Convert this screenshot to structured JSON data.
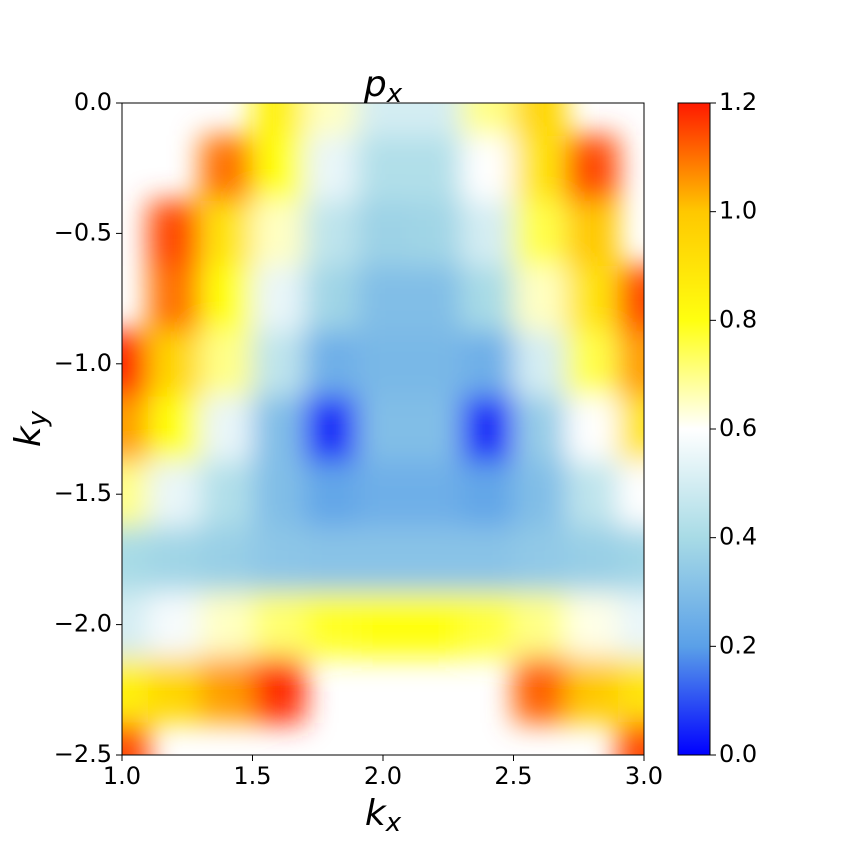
{
  "chart_data": {
    "type": "heatmap",
    "title": {
      "text": "p",
      "subscript": "x"
    },
    "xlabel": {
      "text": "k",
      "subscript": "x"
    },
    "ylabel": {
      "text": "k",
      "subscript": "y"
    },
    "x": [
      1.0,
      1.2,
      1.4,
      1.6,
      1.8,
      2.0,
      2.2,
      2.4,
      2.6,
      2.8,
      3.0
    ],
    "y": [
      0,
      -0.25,
      -0.5,
      -0.75,
      -1.0,
      -1.25,
      -1.5,
      -1.75,
      -2.0,
      -2.25,
      -2.5
    ],
    "z": [
      [
        null,
        null,
        null,
        0.85,
        0.65,
        0.5,
        0.5,
        0.7,
        0.95,
        null,
        null
      ],
      [
        null,
        null,
        1.1,
        0.8,
        0.55,
        0.42,
        0.42,
        0.6,
        0.9,
        1.15,
        null
      ],
      [
        null,
        1.15,
        0.9,
        0.65,
        0.45,
        0.37,
        0.38,
        0.5,
        0.75,
        1.0,
        null
      ],
      [
        null,
        1.1,
        0.8,
        0.55,
        0.38,
        0.3,
        0.3,
        0.4,
        0.65,
        0.9,
        1.15
      ],
      [
        1.2,
        0.95,
        0.7,
        0.45,
        0.25,
        0.28,
        0.28,
        0.25,
        0.5,
        0.75,
        1.05
      ],
      [
        1.05,
        0.8,
        0.55,
        0.3,
        0.05,
        0.3,
        0.3,
        0.05,
        0.35,
        0.6,
        0.9
      ],
      [
        0.7,
        0.55,
        0.42,
        0.3,
        0.22,
        0.25,
        0.25,
        0.22,
        0.3,
        0.45,
        0.6
      ],
      [
        0.4,
        0.38,
        0.36,
        0.33,
        0.32,
        0.32,
        0.32,
        0.32,
        0.34,
        0.36,
        0.38
      ],
      [
        0.5,
        0.58,
        0.65,
        0.72,
        0.78,
        0.8,
        0.8,
        0.76,
        0.7,
        0.62,
        0.55
      ],
      [
        0.85,
        0.95,
        1.05,
        1.18,
        null,
        null,
        null,
        null,
        1.12,
        1.0,
        0.9
      ],
      [
        1.15,
        null,
        null,
        null,
        null,
        null,
        null,
        null,
        null,
        null,
        1.15
      ]
    ],
    "xlim": [
      1.0,
      3.0
    ],
    "ylim": [
      -2.5,
      0
    ],
    "xticks": [
      {
        "value": 1.0,
        "label": "1.0"
      },
      1.5,
      {
        "value": 2.0,
        "label": "2.0"
      },
      2.5,
      {
        "value": 3.0,
        "label": "3.0"
      }
    ],
    "yticks": [
      {
        "value": 0,
        "label": "0.0"
      },
      {
        "value": -0.5,
        "label": "−0.5"
      },
      {
        "value": -1.0,
        "label": "−1.0"
      },
      {
        "value": -1.5,
        "label": "−1.5"
      },
      {
        "value": -2.0,
        "label": "−2.0"
      },
      {
        "value": -2.5,
        "label": "−2.5"
      }
    ],
    "colorbar": {
      "lim": [
        0,
        1.2
      ],
      "ticks": [
        {
          "value": 0,
          "label": "0.0"
        },
        0.2,
        0.4,
        0.6,
        0.8,
        {
          "value": 1.0,
          "label": "1.0"
        },
        1.2
      ],
      "colors": [
        "#0000ff",
        "#5aa0e8",
        "#a8dbe6",
        "#ffffff",
        "#ffff10",
        "#ffc800",
        "#ff1a00"
      ]
    }
  }
}
